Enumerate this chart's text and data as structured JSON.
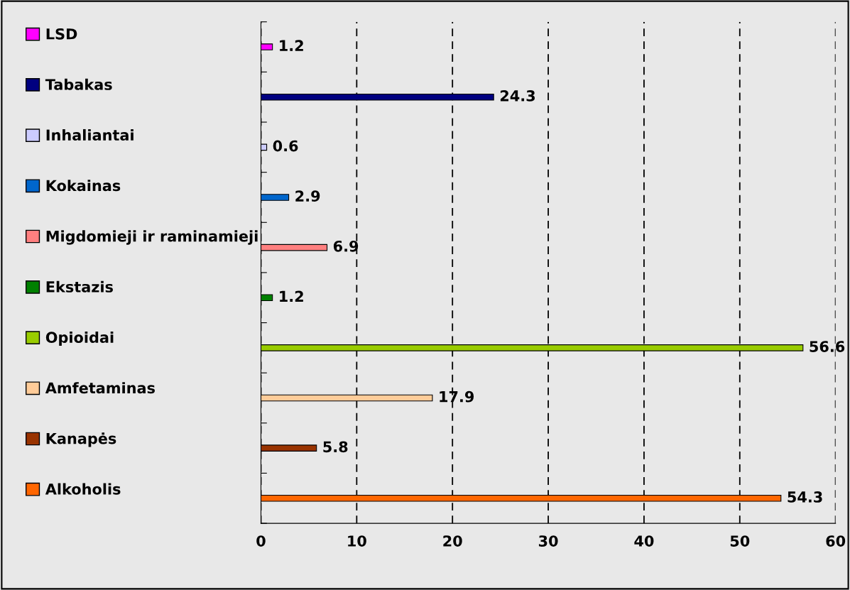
{
  "chart_data": {
    "type": "bar",
    "orientation": "horizontal",
    "categories": [
      null,
      null,
      null,
      null,
      null,
      null,
      null,
      null,
      null,
      null
    ],
    "series": [
      {
        "name": "LSD",
        "color": "#ff00ff",
        "values": [
          1.2,
          null,
          null,
          null,
          null,
          null,
          null,
          null,
          null,
          null
        ]
      },
      {
        "name": "Tabakas",
        "color": "#000080",
        "values": [
          null,
          24.3,
          null,
          null,
          null,
          null,
          null,
          null,
          null,
          null
        ]
      },
      {
        "name": "Inhaliantai",
        "color": "#ccccff",
        "values": [
          null,
          null,
          0.6,
          null,
          null,
          null,
          null,
          null,
          null,
          null
        ]
      },
      {
        "name": "Kokainas",
        "color": "#0066cc",
        "values": [
          null,
          null,
          null,
          2.9,
          null,
          null,
          null,
          null,
          null,
          null
        ]
      },
      {
        "name": "Migdomieji ir raminamieji",
        "color": "#ff8080",
        "values": [
          null,
          null,
          null,
          null,
          6.9,
          null,
          null,
          null,
          null,
          null
        ]
      },
      {
        "name": "Ekstazis",
        "color": "#008000",
        "values": [
          null,
          null,
          null,
          null,
          null,
          1.2,
          null,
          null,
          null,
          null
        ]
      },
      {
        "name": "Opioidai",
        "color": "#99cc00",
        "values": [
          null,
          null,
          null,
          null,
          null,
          null,
          56.6,
          null,
          null,
          null
        ]
      },
      {
        "name": "Amfetaminas",
        "color": "#ffcc99",
        "values": [
          null,
          null,
          null,
          null,
          null,
          null,
          null,
          17.9,
          null,
          null
        ]
      },
      {
        "name": "Kanapės",
        "color": "#993300",
        "values": [
          null,
          null,
          null,
          null,
          null,
          null,
          null,
          null,
          5.8,
          null
        ]
      },
      {
        "name": "Alkoholis",
        "color": "#ff6600",
        "values": [
          null,
          null,
          null,
          null,
          null,
          null,
          null,
          null,
          null,
          54.3
        ]
      }
    ],
    "xlim": [
      0,
      60
    ],
    "xticks": [
      0,
      10,
      20,
      30,
      40,
      50,
      60
    ],
    "grid": "x",
    "legend": "left",
    "data_labels": true,
    "tick_labels": "x"
  }
}
